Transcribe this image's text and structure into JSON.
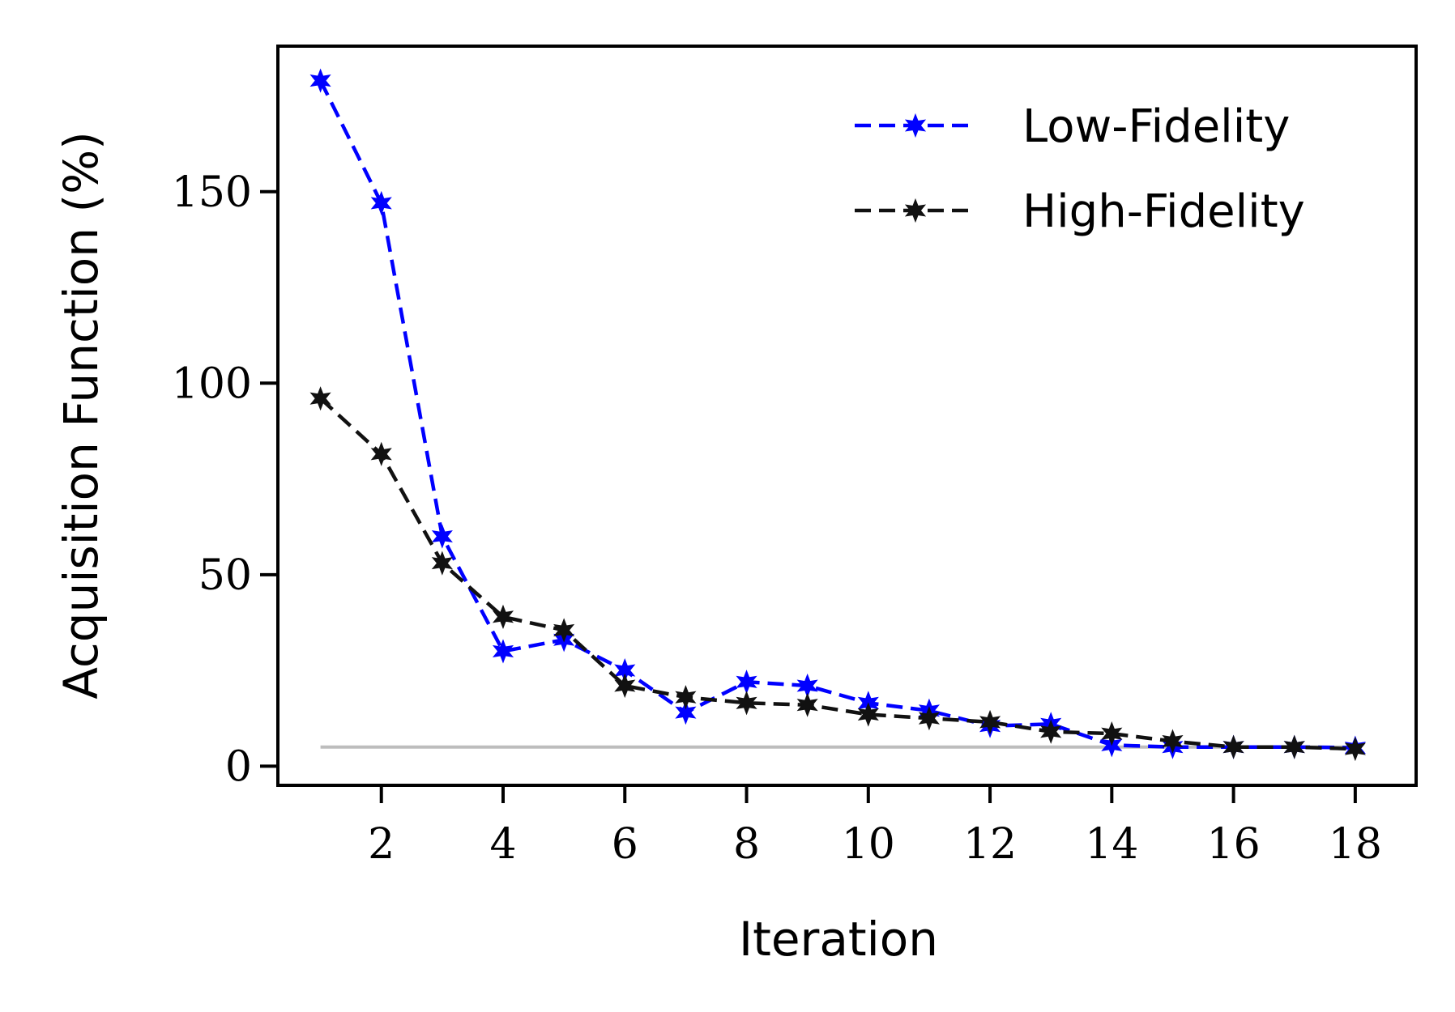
{
  "chart_data": {
    "type": "line",
    "title": "",
    "xlabel": "Iteration",
    "ylabel": "Acquisition Function (%)",
    "xlim": [
      0.3,
      19.0
    ],
    "ylim": [
      -5,
      188
    ],
    "xticks": [
      2,
      4,
      6,
      8,
      10,
      12,
      14,
      16,
      18
    ],
    "yticks": [
      0,
      50,
      100,
      150
    ],
    "grid": false,
    "legend_position": "top-right",
    "reference_line": {
      "y": 5,
      "x_range": [
        1,
        18
      ],
      "color": "#bdbdbd"
    },
    "x": [
      1,
      2,
      3,
      4,
      5,
      6,
      7,
      8,
      9,
      10,
      11,
      12,
      13,
      14,
      15,
      16,
      17,
      18
    ],
    "series": [
      {
        "name": "Low-Fidelity",
        "color": "#0000ff",
        "marker": "star",
        "line_style": "dashed",
        "values": [
          179,
          147,
          60,
          30,
          33,
          25,
          14,
          22,
          21,
          16.5,
          14.5,
          10.5,
          11,
          5.5,
          5,
          5,
          5,
          4.8
        ]
      },
      {
        "name": "High-Fidelity",
        "color": "#111111",
        "marker": "star",
        "line_style": "dashed",
        "values": [
          96,
          81.5,
          53,
          39,
          35.5,
          21,
          18,
          16.5,
          16,
          13.5,
          12.5,
          11.5,
          9,
          8.5,
          6.5,
          5,
          5,
          4.5
        ]
      }
    ]
  }
}
